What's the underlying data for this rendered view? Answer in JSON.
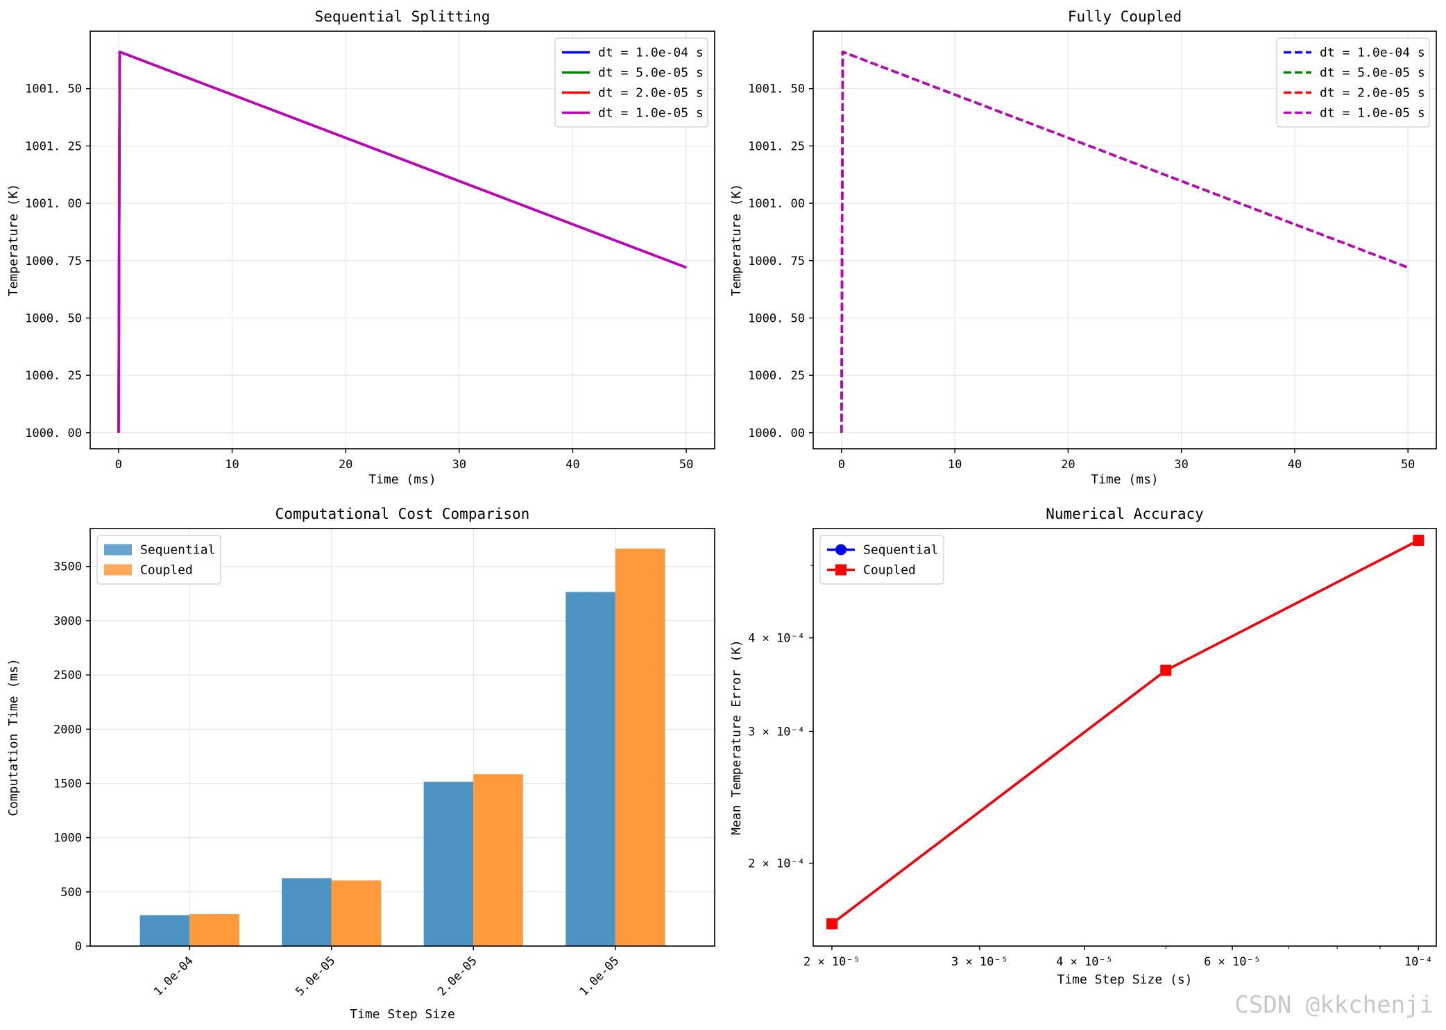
{
  "watermark": "CSDN @kkchenji",
  "chart_data": [
    {
      "type": "line",
      "title": "Sequential Splitting",
      "xlabel": "Time (ms)",
      "ylabel": "Temperature (K)",
      "xlim": [
        -2.5,
        52.5
      ],
      "ylim": [
        999.93,
        1001.75
      ],
      "xticks": [
        0,
        10,
        20,
        30,
        40,
        50
      ],
      "xtick_labels": [
        "0",
        "10",
        "20",
        "30",
        "40",
        "50"
      ],
      "yticks": [
        1000.0,
        1000.25,
        1000.5,
        1000.75,
        1001.0,
        1001.25,
        1001.5
      ],
      "ytick_labels": [
        "1000. 00",
        "1000. 25",
        "1000. 50",
        "1000. 75",
        "1001. 00",
        "1001. 25",
        "1001. 50"
      ],
      "grid": true,
      "legend": "top-right",
      "line_style": "solid",
      "series": [
        {
          "name": "dt = 1.0e-04 s",
          "color": "#0000ff",
          "x": [
            0,
            0.1,
            50
          ],
          "y": [
            1000.0,
            1001.66,
            1000.72
          ]
        },
        {
          "name": "dt = 5.0e-05 s",
          "color": "#008000",
          "x": [
            0,
            0.1,
            50
          ],
          "y": [
            1000.0,
            1001.66,
            1000.72
          ]
        },
        {
          "name": "dt = 2.0e-05 s",
          "color": "#ff0000",
          "x": [
            0,
            0.1,
            50
          ],
          "y": [
            1000.0,
            1001.66,
            1000.72
          ]
        },
        {
          "name": "dt = 1.0e-05 s",
          "color": "#bf00bf",
          "x": [
            0,
            0.1,
            50
          ],
          "y": [
            1000.0,
            1001.66,
            1000.72
          ]
        }
      ]
    },
    {
      "type": "line",
      "title": "Fully Coupled",
      "xlabel": "Time (ms)",
      "ylabel": "Temperature (K)",
      "xlim": [
        -2.5,
        52.5
      ],
      "ylim": [
        999.93,
        1001.75
      ],
      "xticks": [
        0,
        10,
        20,
        30,
        40,
        50
      ],
      "xtick_labels": [
        "0",
        "10",
        "20",
        "30",
        "40",
        "50"
      ],
      "yticks": [
        1000.0,
        1000.25,
        1000.5,
        1000.75,
        1001.0,
        1001.25,
        1001.5
      ],
      "ytick_labels": [
        "1000. 00",
        "1000. 25",
        "1000. 50",
        "1000. 75",
        "1001. 00",
        "1001. 25",
        "1001. 50"
      ],
      "grid": true,
      "legend": "top-right",
      "line_style": "dashed",
      "series": [
        {
          "name": "dt = 1.0e-04 s",
          "color": "#0000ff",
          "x": [
            0,
            0.1,
            50
          ],
          "y": [
            1000.0,
            1001.66,
            1000.72
          ]
        },
        {
          "name": "dt = 5.0e-05 s",
          "color": "#008000",
          "x": [
            0,
            0.1,
            50
          ],
          "y": [
            1000.0,
            1001.66,
            1000.72
          ]
        },
        {
          "name": "dt = 2.0e-05 s",
          "color": "#ff0000",
          "x": [
            0,
            0.1,
            50
          ],
          "y": [
            1000.0,
            1001.66,
            1000.72
          ]
        },
        {
          "name": "dt = 1.0e-05 s",
          "color": "#bf00bf",
          "x": [
            0,
            0.1,
            50
          ],
          "y": [
            1000.0,
            1001.66,
            1000.72
          ]
        }
      ]
    },
    {
      "type": "bar",
      "title": "Computational Cost Comparison",
      "xlabel": "Time Step Size",
      "ylabel": "Computation Time (ms)",
      "categories": [
        "1.0e-04",
        "5.0e-05",
        "2.0e-05",
        "1.0e-05"
      ],
      "ylim": [
        0,
        3850
      ],
      "yticks": [
        0,
        500,
        1000,
        1500,
        2000,
        2500,
        3000,
        3500
      ],
      "ytick_labels": [
        "0",
        "500",
        "1000",
        "1500",
        "2000",
        "2500",
        "3000",
        "3500"
      ],
      "grid": true,
      "legend": "top-left",
      "series": [
        {
          "name": "Sequential",
          "color": "#4c93c3",
          "values": [
            285,
            625,
            1515,
            3265
          ]
        },
        {
          "name": "Coupled",
          "color": "#ff9a3c",
          "values": [
            295,
            605,
            1585,
            3665
          ]
        }
      ]
    },
    {
      "type": "line",
      "title": "Numerical Accuracy",
      "xlabel": "Time Step Size (s)",
      "ylabel": "Mean Temperature Error (K)",
      "xscale": "log",
      "yscale": "log",
      "xlim": [
        1.9e-05,
        0.000105
      ],
      "ylim": [
        0.000155,
        0.00056
      ],
      "xticks": [
        2e-05,
        3e-05,
        4e-05,
        6e-05,
        0.0001
      ],
      "xtick_labels": [
        "2 × 10⁻⁵",
        "3 × 10⁻⁵",
        "4 × 10⁻⁵",
        "6 × 10⁻⁵",
        "10⁻⁴"
      ],
      "yticks": [
        0.0002,
        0.0003,
        0.0004
      ],
      "ytick_labels": [
        "2 × 10⁻⁴",
        "3 × 10⁻⁴",
        "4 × 10⁻⁴"
      ],
      "grid": false,
      "legend": "top-left",
      "series": [
        {
          "name": "Sequential",
          "color": "#0000ff",
          "marker": "circle",
          "x": [
            2e-05,
            5e-05,
            0.0001
          ],
          "y": [
            0.000166,
            0.000362,
            0.00054
          ]
        },
        {
          "name": "Coupled",
          "color": "#ff0000",
          "marker": "square",
          "x": [
            2e-05,
            5e-05,
            0.0001
          ],
          "y": [
            0.000166,
            0.000362,
            0.00054
          ]
        }
      ]
    }
  ]
}
